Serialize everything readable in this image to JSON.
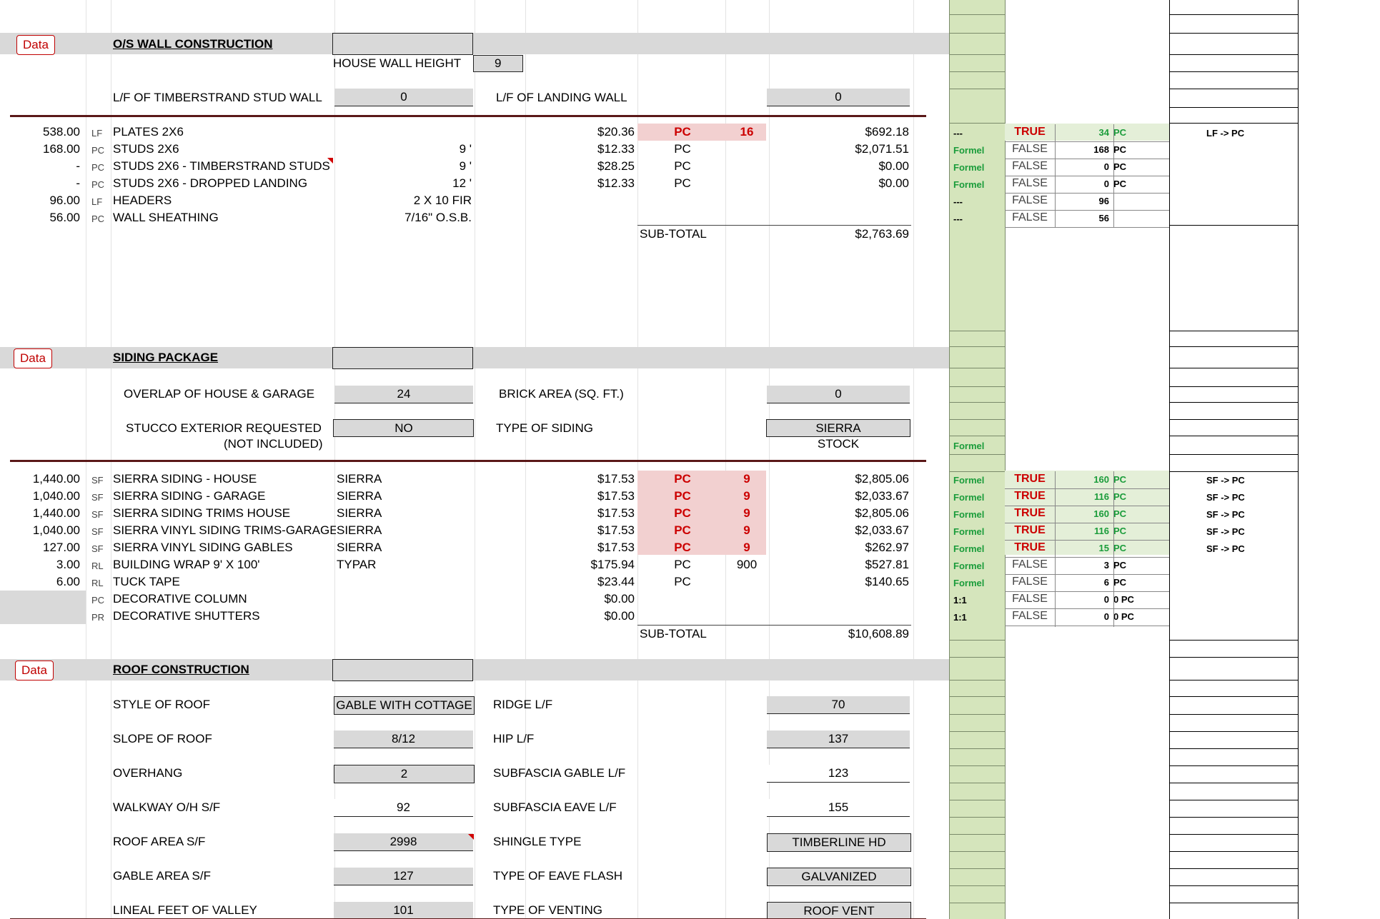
{
  "wall": {
    "data_button": "Data",
    "title": "O/S WALL CONSTRUCTION",
    "house_wall_height_label": "HOUSE WALL HEIGHT",
    "house_wall_height": "9",
    "timberstrand_label": "L/F OF TIMBERSTRAND STUD WALL",
    "timberstrand_value": "0",
    "landing_label": "L/F OF LANDING WALL",
    "landing_value": "0",
    "rows": [
      {
        "qty": "538.00",
        "unit": "LF",
        "item": "PLATES 2X6",
        "spec": "",
        "price": "$20.36",
        "per": "PC",
        "pcs": "16",
        "total": "$692.18",
        "flag": "---",
        "bool": "TRUE",
        "n": "34",
        "u": "PC",
        "note": "LF -> PC"
      },
      {
        "qty": "168.00",
        "unit": "PC",
        "item": "STUDS 2X6",
        "spec": "9 '",
        "price": "$12.33",
        "per": "PC",
        "pcs": "",
        "total": "$2,071.51",
        "flag": "Formel",
        "bool": "FALSE",
        "n": "168",
        "u": "PC",
        "note": ""
      },
      {
        "qty": "-",
        "unit": "PC",
        "item": "STUDS 2X6 - TIMBERSTRAND STUDS",
        "spec": "9 '",
        "price": "$28.25",
        "per": "PC",
        "pcs": "",
        "total": "$0.00",
        "flag": "Formel",
        "bool": "FALSE",
        "n": "0",
        "u": "PC",
        "note": ""
      },
      {
        "qty": "-",
        "unit": "PC",
        "item": "STUDS 2X6 - DROPPED LANDING",
        "spec": "12 '",
        "price": "$12.33",
        "per": "PC",
        "pcs": "",
        "total": "$0.00",
        "flag": "Formel",
        "bool": "FALSE",
        "n": "0",
        "u": "PC",
        "note": ""
      },
      {
        "qty": "96.00",
        "unit": "LF",
        "item": "HEADERS",
        "spec": "2 X 10 FIR",
        "price": "",
        "per": "",
        "pcs": "",
        "total": "",
        "flag": "---",
        "bool": "FALSE",
        "n": "96",
        "u": "",
        "note": ""
      },
      {
        "qty": "56.00",
        "unit": "PC",
        "item": "WALL SHEATHING",
        "spec": "7/16\" O.S.B.",
        "price": "",
        "per": "",
        "pcs": "",
        "total": "",
        "flag": "---",
        "bool": "FALSE",
        "n": "56",
        "u": "",
        "note": ""
      }
    ],
    "subtotal_label": "SUB-TOTAL",
    "subtotal": "$2,763.69"
  },
  "siding": {
    "data_button": "Data",
    "title": "SIDING PACKAGE",
    "overlap_label": "OVERLAP OF HOUSE & GARAGE",
    "overlap_value": "24",
    "brick_label": "BRICK AREA (SQ. FT.)",
    "brick_value": "0",
    "stucco_label": "STUCCO EXTERIOR REQUESTED",
    "stucco_note": "(NOT INCLUDED)",
    "stucco_value": "NO",
    "type_label": "TYPE OF SIDING",
    "type_value": "SIERRA",
    "type_value2": "STOCK",
    "type_flag": "Formel",
    "rows": [
      {
        "qty": "1,440.00",
        "unit": "SF",
        "item": "SIERRA SIDING - HOUSE",
        "spec": "SIERRA",
        "price": "$17.53",
        "per": "PC",
        "pcs": "9",
        "total": "$2,805.06",
        "flag": "Formel",
        "bool": "TRUE",
        "n": "160",
        "u": "PC",
        "note": "SF -> PC"
      },
      {
        "qty": "1,040.00",
        "unit": "SF",
        "item": "SIERRA SIDING - GARAGE",
        "spec": "SIERRA",
        "price": "$17.53",
        "per": "PC",
        "pcs": "9",
        "total": "$2,033.67",
        "flag": "Formel",
        "bool": "TRUE",
        "n": "116",
        "u": "PC",
        "note": "SF -> PC"
      },
      {
        "qty": "1,440.00",
        "unit": "SF",
        "item": "SIERRA SIDING TRIMS HOUSE",
        "spec": "SIERRA",
        "price": "$17.53",
        "per": "PC",
        "pcs": "9",
        "total": "$2,805.06",
        "flag": "Formel",
        "bool": "TRUE",
        "n": "160",
        "u": "PC",
        "note": "SF -> PC"
      },
      {
        "qty": "1,040.00",
        "unit": "SF",
        "item": "SIERRA VINYL SIDING TRIMS-GARAGE",
        "spec": "SIERRA",
        "price": "$17.53",
        "per": "PC",
        "pcs": "9",
        "total": "$2,033.67",
        "flag": "Formel",
        "bool": "TRUE",
        "n": "116",
        "u": "PC",
        "note": "SF -> PC"
      },
      {
        "qty": "127.00",
        "unit": "SF",
        "item": "SIERRA VINYL  SIDING GABLES",
        "spec": "SIERRA",
        "price": "$17.53",
        "per": "PC",
        "pcs": "9",
        "total": "$262.97",
        "flag": "Formel",
        "bool": "TRUE",
        "n": "15",
        "u": "PC",
        "note": "SF -> PC"
      },
      {
        "qty": "3.00",
        "unit": "RL",
        "item": "BUILDING WRAP 9' X 100'",
        "spec": "TYPAR",
        "price": "$175.94",
        "per": "PC",
        "pcs": "900",
        "total": "$527.81",
        "flag": "Formel",
        "bool": "FALSE",
        "n": "3",
        "u": "PC",
        "note": ""
      },
      {
        "qty": "6.00",
        "unit": "RL",
        "item": "TUCK TAPE",
        "spec": "",
        "price": "$23.44",
        "per": "PC",
        "pcs": "",
        "total": "$140.65",
        "flag": "Formel",
        "bool": "FALSE",
        "n": "6",
        "u": "PC",
        "note": ""
      },
      {
        "qty": "",
        "unit": "PC",
        "item": "DECORATIVE COLUMN",
        "spec": "",
        "price": "$0.00",
        "per": "",
        "pcs": "",
        "total": "",
        "flag": "1:1",
        "bool": "FALSE",
        "n": "0",
        "u": "0 PC",
        "note": ""
      },
      {
        "qty": "",
        "unit": "PR",
        "item": "DECORATIVE SHUTTERS",
        "spec": "",
        "price": "$0.00",
        "per": "",
        "pcs": "",
        "total": "",
        "flag": "1:1",
        "bool": "FALSE",
        "n": "0",
        "u": "0 PC",
        "note": ""
      }
    ],
    "subtotal_label": "SUB-TOTAL",
    "subtotal": "$10,608.89"
  },
  "roof": {
    "data_button": "Data",
    "title": "ROOF CONSTRUCTION",
    "fields_left": [
      {
        "label": "STYLE OF ROOF",
        "value": "GABLE WITH COTTAGE"
      },
      {
        "label": "SLOPE OF ROOF",
        "value": "8/12"
      },
      {
        "label": "OVERHANG",
        "value": "2"
      },
      {
        "label": "WALKWAY O/H S/F",
        "value": "92"
      },
      {
        "label": "ROOF AREA  S/F",
        "value": "2998"
      },
      {
        "label": "GABLE AREA S/F",
        "value": "127"
      },
      {
        "label": "LINEAL FEET OF VALLEY",
        "value": "101"
      }
    ],
    "fields_right": [
      {
        "label": "RIDGE L/F",
        "value": "70"
      },
      {
        "label": "HIP L/F",
        "value": "137"
      },
      {
        "label": "SUBFASCIA GABLE L/F",
        "value": "123"
      },
      {
        "label": "SUBFASCIA EAVE L/F",
        "value": "155"
      },
      {
        "label": "SHINGLE TYPE",
        "value": "TIMBERLINE HD"
      },
      {
        "label": "TYPE OF EAVE FLASH",
        "value": "GALVANIZED"
      },
      {
        "label": "TYPE OF VENTING",
        "value": "ROOF VENT"
      }
    ]
  }
}
